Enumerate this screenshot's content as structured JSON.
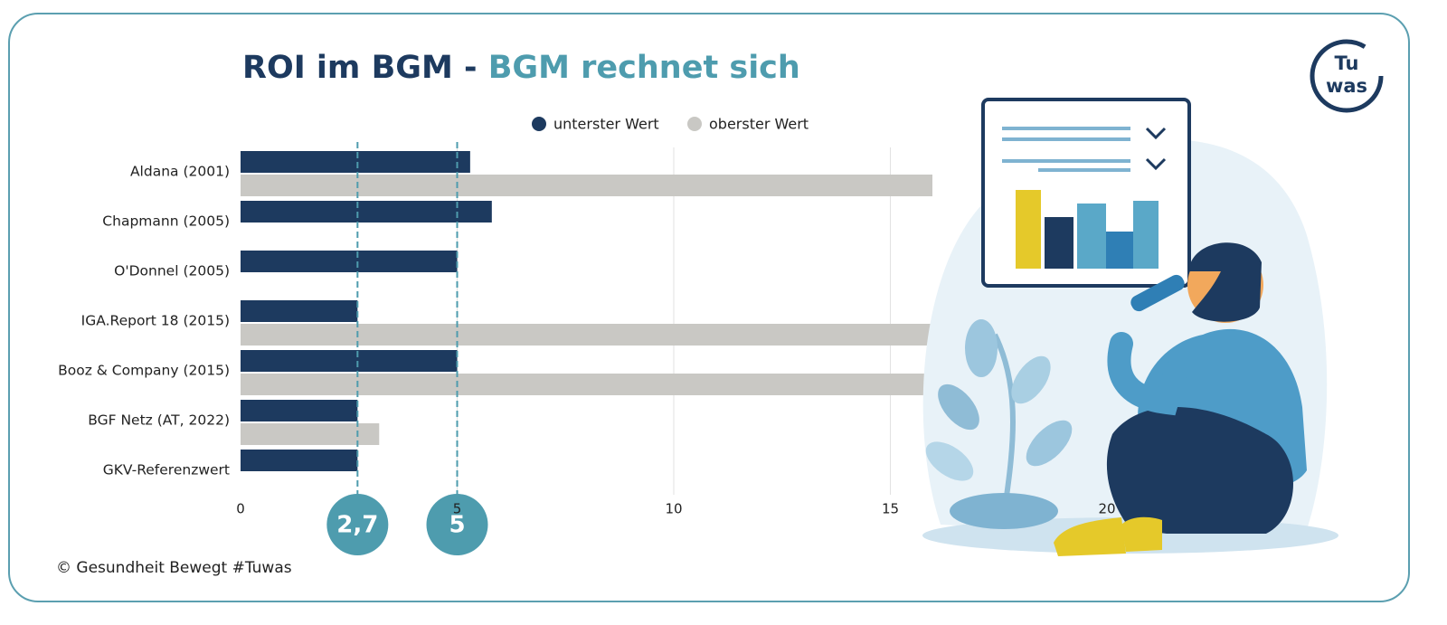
{
  "chart_data": {
    "type": "hbar",
    "title": "ROI im BGM - ",
    "subtitle": "BGM rechnet sich",
    "categories": [
      "Aldana (2001)",
      "Chapmann (2005)",
      "O'Donnel (2005)",
      "IGA.Report 18 (2015)",
      "Booz & Company (2015)",
      "BGF Netz (AT, 2022)",
      "GKV-Referenzwert"
    ],
    "series": [
      {
        "name": "unterster Wert",
        "color": "#1d3a5f",
        "values": [
          5.3,
          5.8,
          5.0,
          2.7,
          5.0,
          2.7,
          2.7
        ]
      },
      {
        "name": "oberster Wert",
        "color": "#c9c8c4",
        "values": [
          16,
          null,
          null,
          16,
          16,
          3.2,
          null
        ]
      }
    ],
    "xlim": [
      0,
      25
    ],
    "xticks": [
      0,
      5,
      10,
      15,
      20
    ],
    "grid": true,
    "reference_lines": [
      {
        "value": 2.7,
        "label": "2,7"
      },
      5
    ],
    "reference_color": "#4e9cae",
    "source": "© Gesundheit Bewegt  #Tuwas",
    "logo": [
      "Tu",
      "was"
    ]
  }
}
